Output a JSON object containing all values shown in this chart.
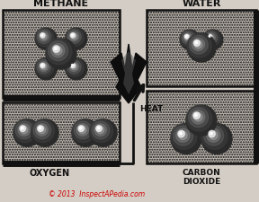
{
  "bg_color": "#d4cdc5",
  "box_color": "#c8c2ba",
  "box_edge": "#111111",
  "title_methane": "METHANE",
  "title_water": "WATER",
  "label_oxygen": "OXYGEN",
  "label_co2": "CARBON\nDIOXIDE",
  "label_heat": "HEAT",
  "copyright": "© 2013  InspectAPedia.com",
  "copyright_color": "#cc0000",
  "label_color": "#111111",
  "figsize": [
    2.88,
    2.26
  ],
  "dpi": 100
}
